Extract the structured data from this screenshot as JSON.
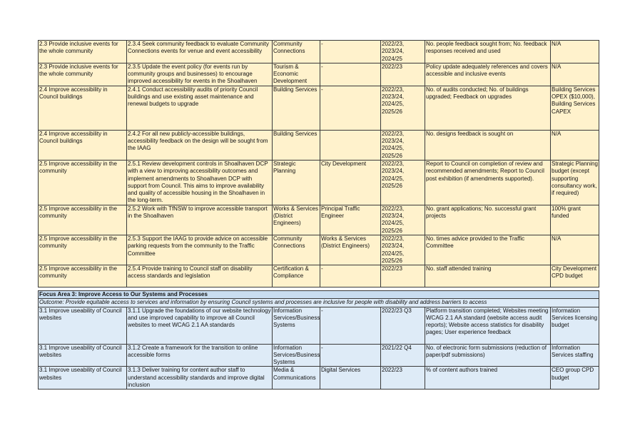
{
  "table1": {
    "rows": [
      [
        "2.3 Provide inclusive events for the whole community",
        "2.3.4 Seek community feedback to evaluate Community Connections events for venue and event accessibility",
        "Community Connections",
        "-",
        "2022/23, 2023/24, 2024/25",
        "No. people feedback sought from; No. feedback responses received and used",
        "N/A"
      ],
      [
        "2.3 Provide inclusive events for the whole community",
        "2.3.5 Update the event policy (for events run by community groups and businesses) to encourage improved accessibility for events in the Shoalhaven",
        "Tourism & Economic Development",
        "-",
        "2022/23",
        "Policy update adequately references and covers accessible and inclusive events",
        "N/A"
      ],
      [
        "2.4 Improve accessibility in Council buildings",
        "2.4.1 Conduct accessibility audits of priority Council buildings and use existing asset maintenance and renewal budgets to upgrade",
        "Building Services",
        "-",
        "2022/23, 2023/24, 2024/25, 2025/26",
        "No. of audits conducted; No. of buildings upgraded; Feedback on upgrades",
        "Building Services OPEX ($10,000), Building Services CAPEX"
      ],
      [
        "2.4 Improve accessibility in Council buildings",
        "2.4.2 For all new publicly-accessible buildings, accessibility feedback on the design will be sought from the IAAG",
        "Building Services",
        "",
        "2022/23, 2023/24, 2024/25, 2025/26",
        "No. designs feedback is sought on",
        "N/A"
      ],
      [
        "2.5 Improve accessibility in the community",
        "2.5.1 Review development controls in Shoalhaven DCP with a view to improving accessibility outcomes and implement amendments to Shoalhaven DCP with support from Council. This aims to improve availability and quality of accessible housing in the Shoalhaven in the long-term.",
        "Strategic Planning",
        "City Development",
        "2022/23, 2023/24, 2024/25, 2025/26",
        "Report to Council on completion of review and recommended amendments; Report to Council post exhibition (if amendments supported).",
        "Strategic Planning budget (except supporting consultancy work, if required)"
      ],
      [
        "2.5 Improve accessibility in the community",
        "2.5.2 Work with TfNSW to improve accessible transport in the Shoalhaven",
        "Works & Services (District Engineers)",
        "Principal Traffic Engineer",
        "2022/23, 2023/24, 2024/25, 2025/26",
        "No. grant applications; No. successful grant projects",
        "100% grant funded"
      ],
      [
        "2.5 Improve accessibility in the community",
        "2.5.3 Support the IAAG to provide advice on accessible parking requests from the community to the Traffic Committee",
        "Community Connections",
        "Works & Services (District Engineers)",
        "2022/23, 2023/24, 2024/25, 2025/26",
        "No. times advice provided to the Traffic Committee",
        "N/A"
      ],
      [
        "2.5 Improve accessibility in the community",
        "2.5.4 Provide training to Council staff on disability access standards and legislation",
        "Certification & Compliance",
        "-",
        "2022/23",
        "No. staff attended training",
        "City Development CPD budget"
      ]
    ]
  },
  "table2": {
    "focus_title": "Focus Area 3: Improve Access to Our Systems and Processes",
    "outcome": "Outcome: Provide equitable access to services and information by ensuring Council systems and processes are inclusive for people with disability and address barriers to access",
    "rows": [
      [
        "3.1 Improve useability of Council websites",
        "3.1.1 Upgrade the foundations of our website technology and use improved capability to improve all Council websites to meet WCAG 2.1 AA standards",
        "Information Services/Business Systems",
        "-",
        "2022/23 Q3",
        "Platform transition completed; Websites meeting WCAG 2.1 AA standard (website access audit reports); Website access statistics for disability pages; User experience feedback",
        "Information Services licensing budget"
      ],
      [
        "3.1 Improve useability of Council websites",
        "3.1.2 Create a framework for the transition to online accessible forms",
        "Information Services/Business Systems",
        "-",
        "2021/22 Q4",
        "No. of electronic form submissions (reduction of paper/pdf submissions)",
        "Information Services staffing"
      ],
      [
        "3.1 Improve useability of Council websites",
        "3.1.3 Deliver training for content author staff to understand accessibility standards and improve digital inclusion",
        "Media & Communications",
        "Digital Services",
        "2022/23",
        "% of content authors trained",
        "CEO group CPD budget"
      ]
    ]
  }
}
